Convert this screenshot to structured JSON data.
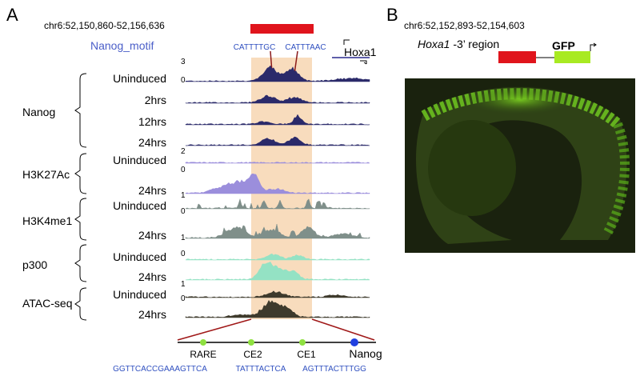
{
  "panel_a": {
    "label": "A",
    "coordinates": "chr6:52,150,860-52,156,636",
    "motif_label": "Nanog_motif",
    "motifs": [
      "CATTTTGC",
      "CATTTAAC"
    ],
    "gene": "Hoxa1",
    "groups": [
      {
        "name": "Nanog",
        "scale": [
          3,
          0
        ],
        "tracks": [
          "Uninduced",
          "2hrs",
          "12hrs",
          "24hrs"
        ]
      },
      {
        "name": "H3K27Ac",
        "scale": [
          2,
          0
        ],
        "tracks": [
          "Uninduced",
          "24hrs"
        ]
      },
      {
        "name": "H3K4me1",
        "scale": [
          1,
          0
        ],
        "tracks": [
          "Uninduced",
          "24hrs"
        ]
      },
      {
        "name": "p300",
        "scale": [
          1,
          0
        ],
        "tracks": [
          "Uninduced",
          "24hrs"
        ]
      },
      {
        "name": "ATAC-seq",
        "scale": [
          1,
          0
        ],
        "tracks": [
          "Uninduced",
          "24hrs"
        ]
      }
    ],
    "elements": [
      {
        "name": "RARE",
        "sequence": "GGTTCACCGAAAGTTCA"
      },
      {
        "name": "CE2",
        "sequence": "TATTTACTCA"
      },
      {
        "name": "CE1",
        "sequence": "AGTTTACTTTGG"
      },
      {
        "name": "Nanog"
      }
    ]
  },
  "panel_b": {
    "label": "B",
    "coordinates": "chr6:52,152,893-52,154,603",
    "region_gene": "Hoxa1",
    "region_suffix": " -3’ region",
    "reporter": "GFP"
  }
}
